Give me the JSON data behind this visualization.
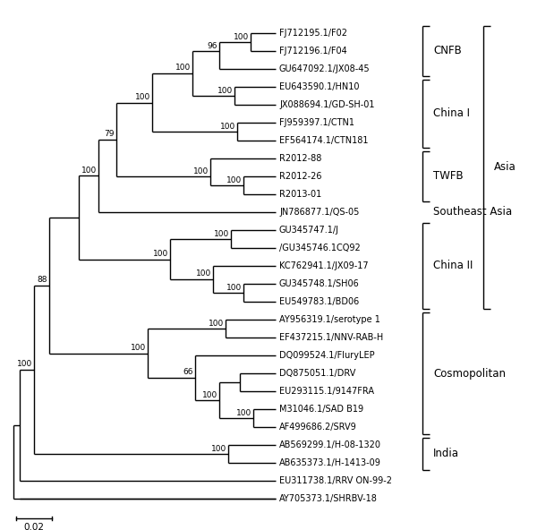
{
  "figsize": [
    6.0,
    5.92
  ],
  "dpi": 100,
  "taxa": [
    "FJ712195.1/F02",
    "FJ712196.1/F04",
    "GU647092.1/JX08-45",
    "EU643590.1/HN10",
    "JX088694.1/GD-SH-01",
    "FJ959397.1/CTN1",
    "EF564174.1/CTN181",
    "R2012-88",
    "R2012-26",
    "R2013-01",
    "JN786877.1/QS-05",
    "GU345747.1/J",
    "/GU345746.1CQ92",
    "KC762941.1/JX09-17",
    "GU345748.1/SH06",
    "EU549783.1/BD06",
    "AY956319.1/serotype 1",
    "EF437215.1/NNV-RAB-H",
    "DQ099524.1/FluryLEP",
    "DQ875051.1/DRV",
    "EU293115.1/9147FRA",
    "M31046.1/SAD B19",
    "AF499686.2/SRV9",
    "AB569299.1/H-08-1320",
    "AB635373.1/H-1413-09",
    "EU311738.1/RRV ON-99-2",
    "AY705373.1/SHRBV-18"
  ],
  "bootstrap_nodes": {
    "n01": 100,
    "n012": 96,
    "n34": 100,
    "n0_4": 100,
    "n56": 100,
    "n0_6": 100,
    "n89": 100,
    "n789": 100,
    "n0_9": 79,
    "n0_10": 100,
    "n1112": 100,
    "n1415": 100,
    "n13_15": 100,
    "n11_15": 100,
    "n_asia_cosmo": 88,
    "n1617": 100,
    "n1920": 66,
    "n19_22": 100,
    "n2122": 100,
    "n_cosmo": 100,
    "n2324": 100,
    "n_main": 100
  },
  "scale_bar_label": "0.02",
  "font_size_taxa": 7.0,
  "font_size_boot": 6.5,
  "font_size_group": 8.5,
  "line_width": 1.0
}
